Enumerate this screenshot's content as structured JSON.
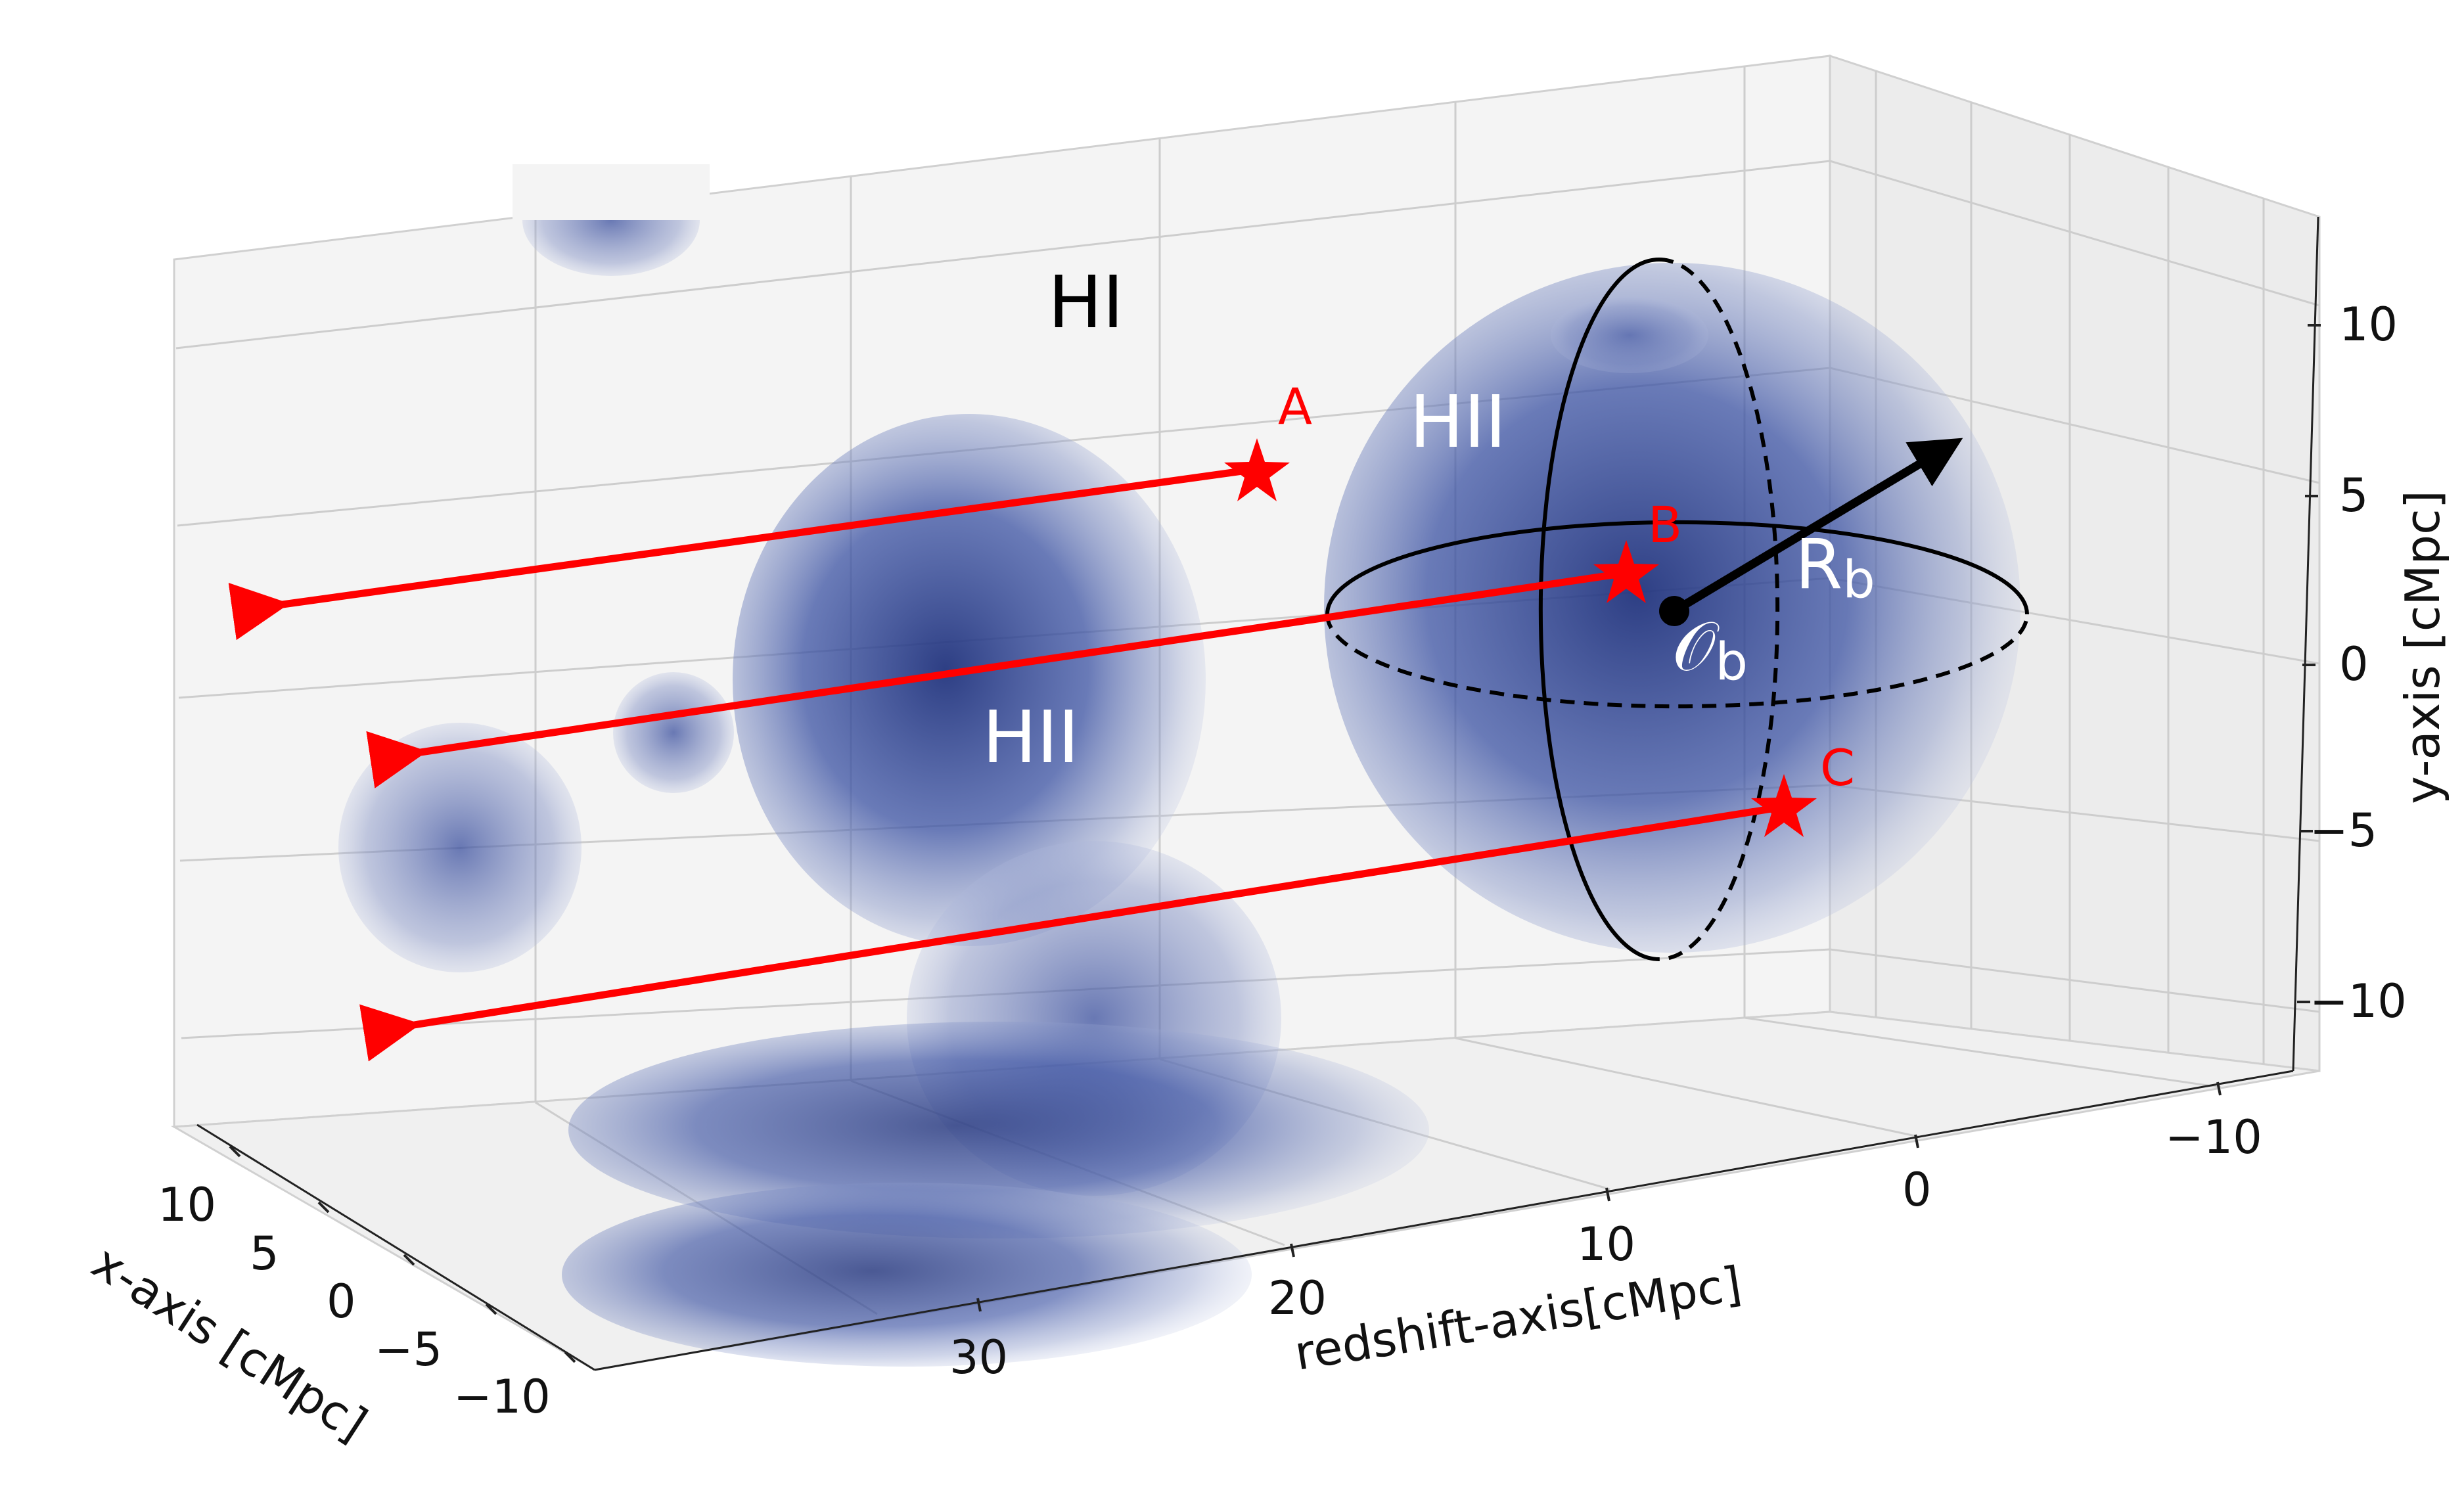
{
  "axes": {
    "x_label": "x-axis [cMpc]",
    "y_label": "y-axis [cMpc]",
    "z_label": "redshift-axis[cMpc]",
    "x_ticks": [
      "10",
      "5",
      "0",
      "−5",
      "−10"
    ],
    "y_ticks": [
      "10",
      "5",
      "0",
      "−5",
      "−10"
    ],
    "z_ticks": [
      "30",
      "20",
      "10",
      "0",
      "−10"
    ]
  },
  "labels": {
    "hi": "HI",
    "hii_large": "HII",
    "hii_mid": "HII",
    "center_symbol": "𝒪",
    "center_sub": "b",
    "radius_symbol": "R",
    "radius_sub": "b"
  },
  "stars": [
    {
      "label": "A"
    },
    {
      "label": "B"
    },
    {
      "label": "C"
    }
  ],
  "colors": {
    "bubble": "#2a3f8f",
    "ray": "#ff0000",
    "pane": "#f3f3f3",
    "grid": "#c8c8c8"
  }
}
